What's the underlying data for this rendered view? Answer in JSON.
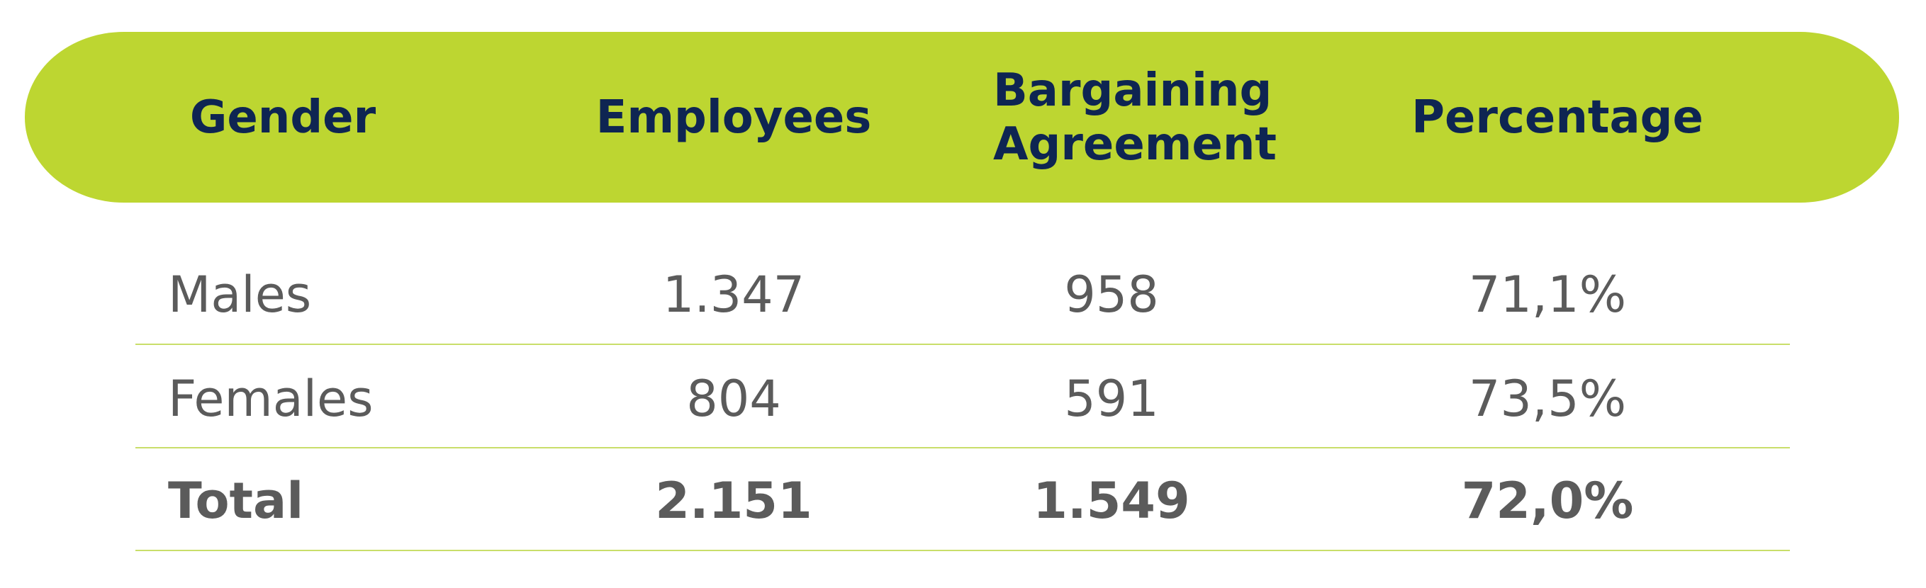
{
  "table": {
    "header": [
      "Gender",
      "Employees",
      "Bargaining Agreement",
      "Percentage"
    ],
    "rows": [
      [
        "Males",
        "1.347",
        "958",
        "71,1%"
      ],
      [
        "Females",
        "804",
        "591",
        "73,5%"
      ],
      [
        "Total",
        "2.151",
        "1.549",
        "72,0%"
      ]
    ]
  }
}
